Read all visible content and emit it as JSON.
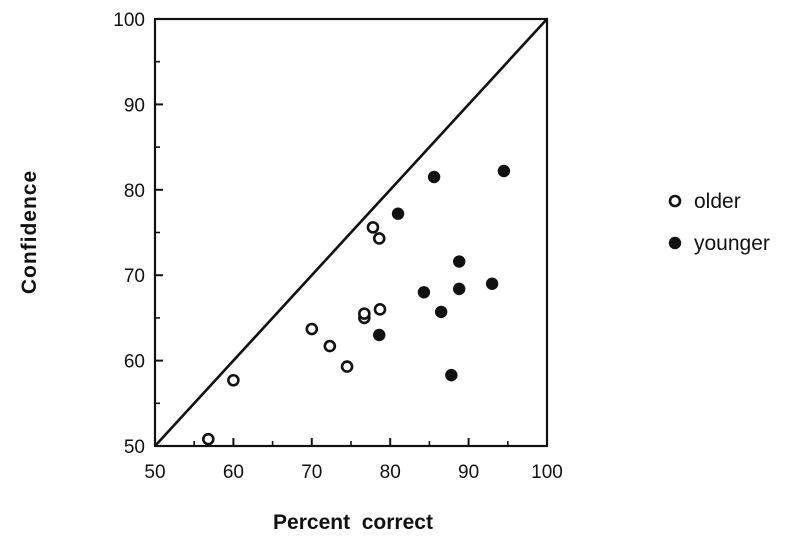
{
  "chart_data": {
    "type": "scatter",
    "xlabel": "Percent  correct",
    "ylabel": "Confidence",
    "xlim": [
      50,
      100
    ],
    "ylim": [
      50,
      100
    ],
    "x_ticks": [
      50,
      60,
      70,
      80,
      90,
      100
    ],
    "y_ticks": [
      50,
      60,
      70,
      80,
      90,
      100
    ],
    "reference_line": {
      "from": [
        50,
        50
      ],
      "to": [
        100,
        100
      ]
    },
    "legend_position": "right",
    "grid": false,
    "series": [
      {
        "name": "older",
        "marker": "open-circle",
        "points": [
          {
            "x": 56.8,
            "y": 50.8
          },
          {
            "x": 60.0,
            "y": 57.7
          },
          {
            "x": 70.0,
            "y": 63.7
          },
          {
            "x": 72.3,
            "y": 61.7
          },
          {
            "x": 74.5,
            "y": 59.3
          },
          {
            "x": 76.7,
            "y": 65.0
          },
          {
            "x": 76.7,
            "y": 65.5
          },
          {
            "x": 77.8,
            "y": 75.6
          },
          {
            "x": 78.6,
            "y": 74.3
          },
          {
            "x": 78.7,
            "y": 66.0
          }
        ]
      },
      {
        "name": "younger",
        "marker": "filled-circle",
        "points": [
          {
            "x": 78.6,
            "y": 63.0
          },
          {
            "x": 81.0,
            "y": 77.2
          },
          {
            "x": 84.3,
            "y": 68.0
          },
          {
            "x": 85.6,
            "y": 81.5
          },
          {
            "x": 86.5,
            "y": 65.7
          },
          {
            "x": 87.8,
            "y": 58.3
          },
          {
            "x": 88.8,
            "y": 71.6
          },
          {
            "x": 88.8,
            "y": 68.4
          },
          {
            "x": 93.0,
            "y": 69.0
          },
          {
            "x": 94.5,
            "y": 82.2
          }
        ]
      }
    ]
  }
}
